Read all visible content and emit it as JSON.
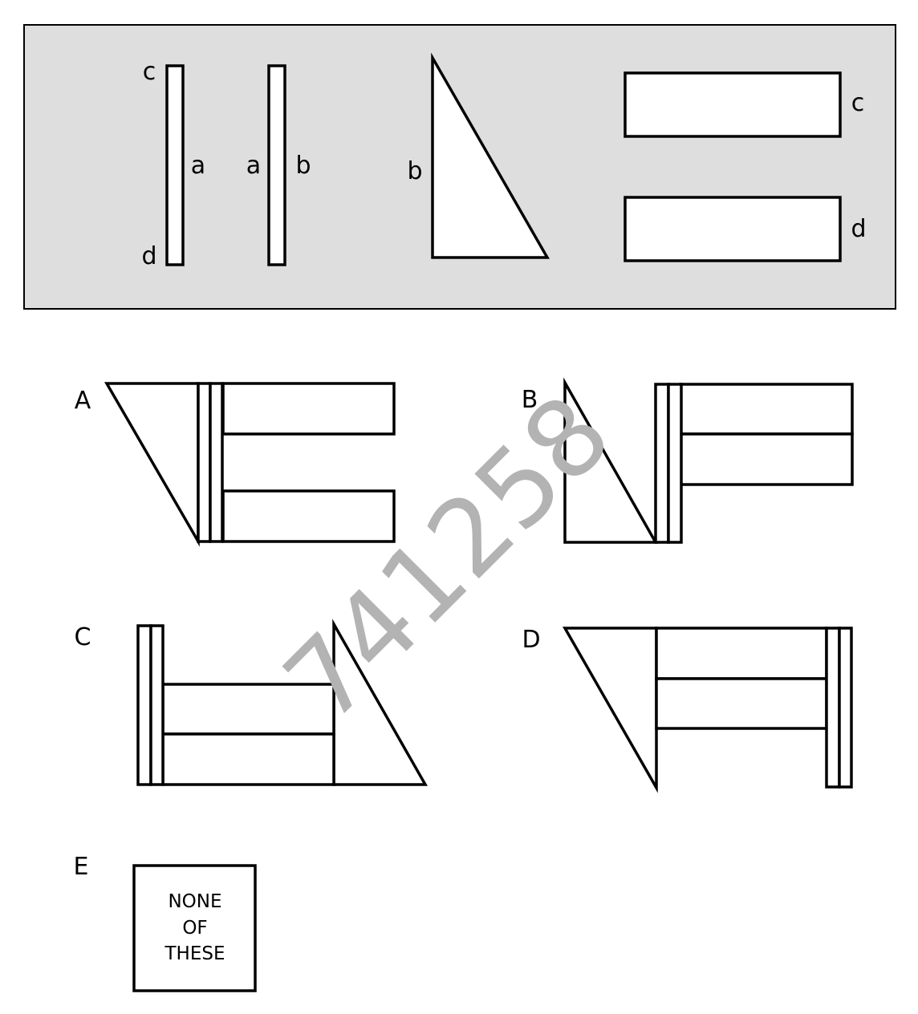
{
  "colors": {
    "panel_fill": "#dedede",
    "stroke": "#000000",
    "shape_fill": "#ffffff",
    "watermark": "#b3b3b3"
  },
  "pieces": {
    "strip1": {
      "top_label": "c",
      "side_label": "a",
      "bottom_label": "d"
    },
    "strip2": {
      "left_label": "a",
      "right_label": "b"
    },
    "triangle": {
      "side_label": "b"
    },
    "rect_top": {
      "label": "c"
    },
    "rect_bottom": {
      "label": "d"
    }
  },
  "options": {
    "A": {
      "label": "A"
    },
    "B": {
      "label": "B"
    },
    "C": {
      "label": "C"
    },
    "D": {
      "label": "D"
    },
    "E": {
      "label": "E",
      "line1": "NONE",
      "line2": "OF",
      "line3": "THESE"
    }
  },
  "watermark": "741258"
}
